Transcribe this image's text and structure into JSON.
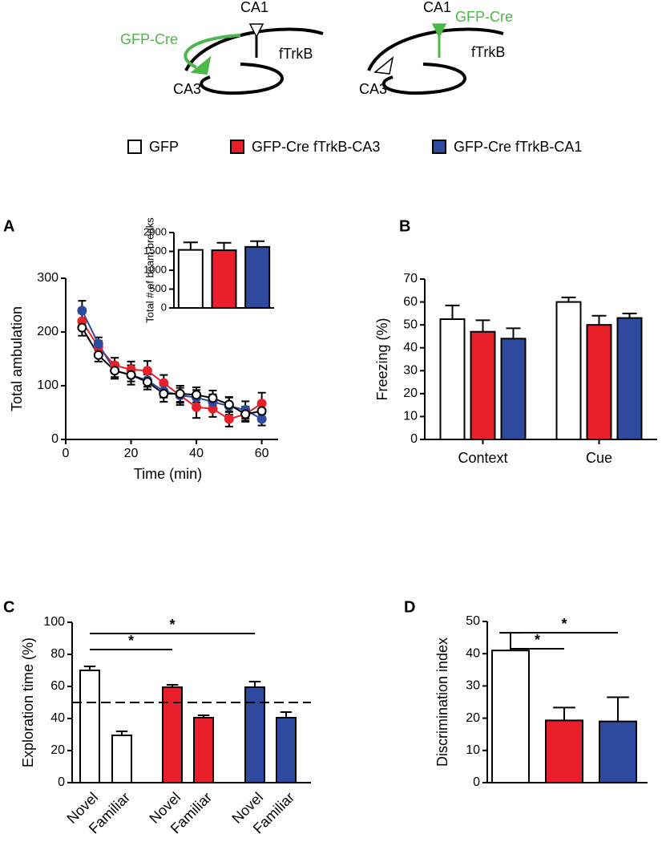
{
  "diagrams": [
    {
      "ca1": "CA1",
      "cre": "GFP-Cre",
      "trkb": "fTrkB",
      "ca3": "CA3"
    },
    {
      "ca1": "CA1",
      "cre": "GFP-Cre",
      "trkb": "fTrkB",
      "ca3": "CA3"
    }
  ],
  "legend": [
    {
      "name": "GFP",
      "color": "#ffffff"
    },
    {
      "name": "GFP-Cre fTrkB-CA3",
      "color": "#e8202a"
    },
    {
      "name": "GFP-Cre fTrkB-CA1",
      "color": "#2e4a9e"
    }
  ],
  "chart_data": [
    {
      "type": "line",
      "panel": "A",
      "x_label": "Time  (min)",
      "y_label": "Total ambulation",
      "x": [
        5,
        10,
        15,
        20,
        25,
        30,
        35,
        40,
        45,
        50,
        55,
        60
      ],
      "xlim": [
        0,
        65
      ],
      "xticks": [
        0,
        20,
        40,
        60
      ],
      "ylim": [
        0,
        300
      ],
      "yticks": [
        0,
        100,
        200,
        300
      ],
      "series": [
        {
          "color": "#e8202a",
          "marker": "filled",
          "values": [
            220,
            172,
            138,
            130,
            128,
            105,
            82,
            60,
            57,
            38,
            47,
            67
          ],
          "errors": [
            15,
            12,
            14,
            15,
            18,
            15,
            18,
            20,
            15,
            14,
            12,
            20
          ]
        },
        {
          "color": "#2e4a9e",
          "marker": "filled",
          "values": [
            240,
            178,
            128,
            120,
            110,
            90,
            82,
            78,
            70,
            62,
            55,
            38
          ],
          "errors": [
            18,
            12,
            12,
            12,
            12,
            12,
            14,
            14,
            14,
            16,
            16,
            12
          ]
        },
        {
          "color": "#000000",
          "marker": "open",
          "values": [
            208,
            157,
            128,
            120,
            107,
            85,
            85,
            83,
            77,
            65,
            47,
            53
          ],
          "errors": [
            15,
            12,
            15,
            18,
            14,
            15,
            15,
            14,
            14,
            14,
            14,
            16
          ]
        }
      ]
    },
    {
      "type": "bar",
      "y_label": "Total # of beam breaks",
      "values": [
        1540,
        1530,
        1620
      ],
      "errors": [
        200,
        200,
        150
      ],
      "colors": [
        "#ffffff",
        "#e8202a",
        "#2e4a9e"
      ],
      "ylim": [
        0,
        2000
      ],
      "yticks": [
        0,
        500,
        1000,
        1500,
        2000
      ]
    },
    {
      "type": "grouped-bar",
      "panel": "B",
      "y_label": "Freezing (%)",
      "categories": [
        "Context",
        "Cue"
      ],
      "ylim": [
        0,
        70
      ],
      "yticks": [
        0,
        10,
        20,
        30,
        40,
        50,
        60,
        70
      ],
      "series": [
        {
          "color": "#ffffff",
          "values": [
            52.5,
            60
          ],
          "errors": [
            6,
            2
          ]
        },
        {
          "color": "#e8202a",
          "values": [
            47,
            50
          ],
          "errors": [
            5,
            4
          ]
        },
        {
          "color": "#2e4a9e",
          "values": [
            44,
            53
          ],
          "errors": [
            4.5,
            2
          ]
        }
      ]
    },
    {
      "type": "bar",
      "panel": "C",
      "y_label": "Exploration time (%)",
      "categories": [
        "Novel",
        "Familiar",
        "Novel",
        "Familiar",
        "Novel",
        "Familiar"
      ],
      "values": [
        70,
        29.5,
        59.5,
        40.5,
        59.5,
        40.5
      ],
      "errors": [
        2.5,
        2.5,
        1.5,
        1.5,
        3.5,
        3.5
      ],
      "colors": [
        "#ffffff",
        "#ffffff",
        "#e8202a",
        "#e8202a",
        "#2e4a9e",
        "#2e4a9e"
      ],
      "reference_line": 50,
      "ylim": [
        0,
        100
      ],
      "yticks": [
        0,
        20,
        40,
        60,
        80,
        100
      ],
      "annotations": [
        {
          "text": "*",
          "from": 0,
          "to": 2
        },
        {
          "text": "*",
          "from": 0,
          "to": 4
        }
      ]
    },
    {
      "type": "bar",
      "panel": "D",
      "y_label": "Discrimination index",
      "values": [
        41,
        19.3,
        19
      ],
      "errors": [
        5.5,
        4,
        7.5
      ],
      "colors": [
        "#ffffff",
        "#e8202a",
        "#2e4a9e"
      ],
      "ylim": [
        0,
        50
      ],
      "yticks": [
        0,
        10,
        20,
        30,
        40,
        50
      ],
      "annotations": [
        {
          "text": "*",
          "from": 0,
          "to": 1
        },
        {
          "text": "*",
          "from": 0,
          "to": 2
        }
      ]
    }
  ]
}
